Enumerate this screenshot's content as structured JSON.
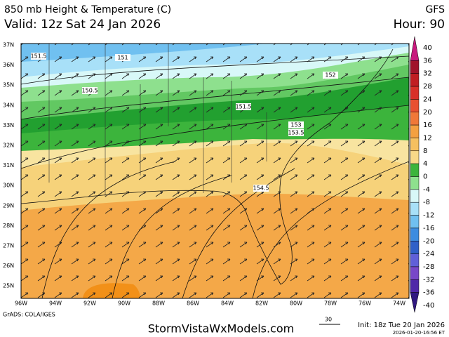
{
  "header": {
    "title": "850 mb Height & Temperature (C)",
    "model": "GFS",
    "valid": "Valid: 12z Sat 24 Jan 2026",
    "hour": "Hour: 90"
  },
  "map": {
    "lat_labels": [
      "37N",
      "36N",
      "35N",
      "34N",
      "33N",
      "32N",
      "31N",
      "30N",
      "29N",
      "28N",
      "27N",
      "26N",
      "25N"
    ],
    "lon_labels": [
      "96W",
      "94W",
      "92W",
      "90W",
      "88W",
      "86W",
      "84W",
      "82W",
      "80W",
      "78W",
      "76W",
      "74W"
    ],
    "contour_labels": [
      "151.5",
      "151",
      "150.5",
      "151.5",
      "152",
      "153",
      "153.5",
      "154.5"
    ]
  },
  "colorbar": {
    "levels": [
      40,
      36,
      32,
      28,
      24,
      20,
      16,
      12,
      8,
      4,
      0,
      -4,
      -8,
      -12,
      -16,
      -20,
      -24,
      -28,
      -32,
      -36,
      -40
    ],
    "colors": [
      "#c8187e",
      "#a0142a",
      "#c01e22",
      "#d83028",
      "#e85030",
      "#f07838",
      "#f4a040",
      "#f6c060",
      "#f8d888",
      "#3cb43c",
      "#8ee08e",
      "#d8f8f8",
      "#a8e0f8",
      "#70c0f0",
      "#3c8ce0",
      "#3060c8",
      "#6060d8",
      "#7848c8",
      "#5028a8",
      "#301880"
    ]
  },
  "footer": {
    "credit": "GrADS: COLA/IGES",
    "site": "StormVistaWxModels.com",
    "wind_scale": "30",
    "init": "Init: 18z Tue 20 Jan 2026",
    "timestamp": "2026-01-20-16:56 ET"
  }
}
